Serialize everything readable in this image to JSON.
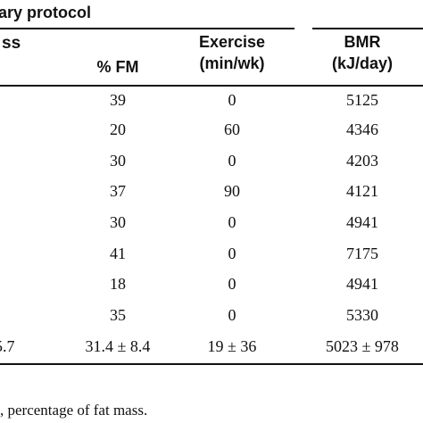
{
  "table": {
    "group_title": "ary protocol",
    "group_left_fragment": "ss",
    "headers": {
      "pct_fm": "% FM",
      "exercise_line1": "Exercise",
      "exercise_line2": "(min/wk)",
      "bmr_line1": "BMR",
      "bmr_line2": "(kJ/day)"
    },
    "rows": [
      {
        "pct_fm": "39",
        "exercise": "0",
        "bmr": "5125"
      },
      {
        "pct_fm": "20",
        "exercise": "60",
        "bmr": "4346"
      },
      {
        "pct_fm": "30",
        "exercise": "0",
        "bmr": "4203"
      },
      {
        "pct_fm": "37",
        "exercise": "90",
        "bmr": "4121"
      },
      {
        "pct_fm": "30",
        "exercise": "0",
        "bmr": "4941"
      },
      {
        "pct_fm": "41",
        "exercise": "0",
        "bmr": "7175"
      },
      {
        "pct_fm": "18",
        "exercise": "0",
        "bmr": "4941"
      },
      {
        "pct_fm": "35",
        "exercise": "0",
        "bmr": "5330"
      }
    ],
    "summary": {
      "left_fragment": "5.7",
      "pct_fm": "31.4 ± 8.4",
      "exercise": "19 ± 36",
      "bmr": "5023 ± 978"
    }
  },
  "footnote": ", percentage of fat mass."
}
